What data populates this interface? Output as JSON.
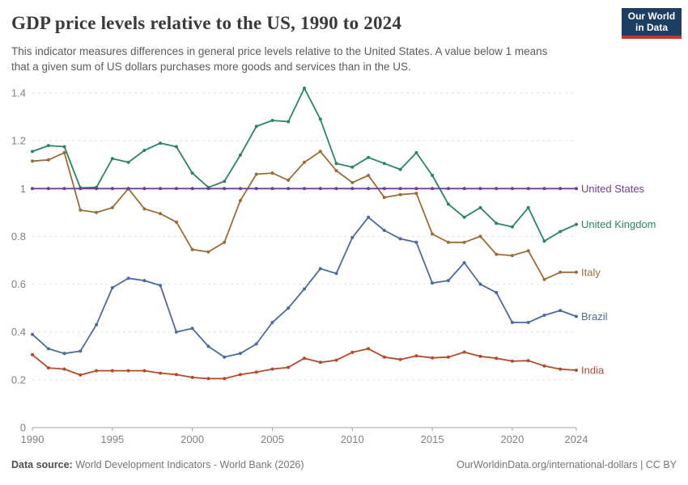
{
  "header": {
    "title": "GDP price levels relative to the US, 1990 to 2024",
    "subtitle_line1": "This indicator measures differences in general price levels relative to the United States. A value below 1 means",
    "subtitle_line2": "that a given sum of US dollars purchases more goods and services than in the US.",
    "logo": {
      "line1": "Our World",
      "line2": "in Data",
      "bg_color": "#1d3d63",
      "accent_color": "#c5372c"
    }
  },
  "footer": {
    "datasource_label": "Data source:",
    "datasource_value": " World Development Indicators - World Bank (2026)",
    "credit": "OurWorldinData.org/international-dollars | CC BY"
  },
  "chart_data": {
    "type": "line",
    "title": "GDP price levels relative to the US, 1990 to 2024",
    "xlabel": "",
    "ylabel": "",
    "ylim": [
      0,
      1.4
    ],
    "grid": "horizontal-dashed",
    "legend_position": "right-end-labels",
    "grid_color": "#dedede",
    "axis_color": "#a3a3a3",
    "tick_text_color": "#818181",
    "x": [
      1990,
      1991,
      1992,
      1993,
      1994,
      1995,
      1996,
      1997,
      1998,
      1999,
      2000,
      2001,
      2002,
      2003,
      2004,
      2005,
      2006,
      2007,
      2008,
      2009,
      2010,
      2011,
      2012,
      2013,
      2014,
      2015,
      2016,
      2017,
      2018,
      2019,
      2020,
      2021,
      2022,
      2023,
      2024
    ],
    "x_ticks": [
      1990,
      1995,
      2000,
      2005,
      2010,
      2015,
      2020,
      2024
    ],
    "y_ticks": [
      {
        "value": 0,
        "label": "0"
      },
      {
        "value": 0.2,
        "label": "0.2"
      },
      {
        "value": 0.4,
        "label": "0.4"
      },
      {
        "value": 0.6,
        "label": "0.6"
      },
      {
        "value": 0.8,
        "label": "0.8"
      },
      {
        "value": 1,
        "label": "1"
      },
      {
        "value": 1.2,
        "label": "1.2"
      },
      {
        "value": 1.4,
        "label": "1.4"
      }
    ],
    "series": [
      {
        "name": "India",
        "color": "#b5492b",
        "values": [
          0.305,
          0.25,
          0.245,
          0.22,
          0.238,
          0.238,
          0.238,
          0.238,
          0.228,
          0.222,
          0.21,
          0.205,
          0.205,
          0.222,
          0.232,
          0.245,
          0.252,
          0.29,
          0.273,
          0.282,
          0.315,
          0.33,
          0.295,
          0.285,
          0.3,
          0.292,
          0.295,
          0.316,
          0.298,
          0.29,
          0.278,
          0.28,
          0.258,
          0.245,
          0.24
        ]
      },
      {
        "name": "Brazil",
        "color": "#4c6a9c",
        "values": [
          0.39,
          0.33,
          0.31,
          0.32,
          0.43,
          0.585,
          0.625,
          0.615,
          0.595,
          0.4,
          0.415,
          0.34,
          0.295,
          0.31,
          0.35,
          0.44,
          0.5,
          0.58,
          0.665,
          0.645,
          0.795,
          0.88,
          0.825,
          0.79,
          0.775,
          0.605,
          0.615,
          0.69,
          0.6,
          0.565,
          0.44,
          0.44,
          0.47,
          0.49,
          0.465
        ]
      },
      {
        "name": "Italy",
        "color": "#996d39",
        "values": [
          1.115,
          1.12,
          1.15,
          0.91,
          0.9,
          0.92,
          1.0,
          0.915,
          0.895,
          0.86,
          0.745,
          0.735,
          0.775,
          0.95,
          1.06,
          1.065,
          1.035,
          1.11,
          1.155,
          1.075,
          1.025,
          1.055,
          0.963,
          0.975,
          0.98,
          0.81,
          0.775,
          0.775,
          0.8,
          0.725,
          0.72,
          0.74,
          0.62,
          0.65,
          0.65
        ]
      },
      {
        "name": "United Kingdom",
        "color": "#2c8465",
        "values": [
          1.155,
          1.18,
          1.175,
          1.003,
          1.005,
          1.125,
          1.11,
          1.16,
          1.19,
          1.175,
          1.065,
          1.005,
          1.03,
          1.14,
          1.26,
          1.285,
          1.28,
          1.42,
          1.29,
          1.105,
          1.09,
          1.13,
          1.105,
          1.08,
          1.15,
          1.055,
          0.935,
          0.88,
          0.92,
          0.855,
          0.84,
          0.92,
          0.78,
          0.82,
          0.85
        ]
      },
      {
        "name": "United States",
        "color": "#6d3e91",
        "values": [
          1,
          1,
          1,
          1,
          1,
          1,
          1,
          1,
          1,
          1,
          1,
          1,
          1,
          1,
          1,
          1,
          1,
          1,
          1,
          1,
          1,
          1,
          1,
          1,
          1,
          1,
          1,
          1,
          1,
          1,
          1,
          1,
          1,
          1,
          1
        ]
      }
    ]
  }
}
